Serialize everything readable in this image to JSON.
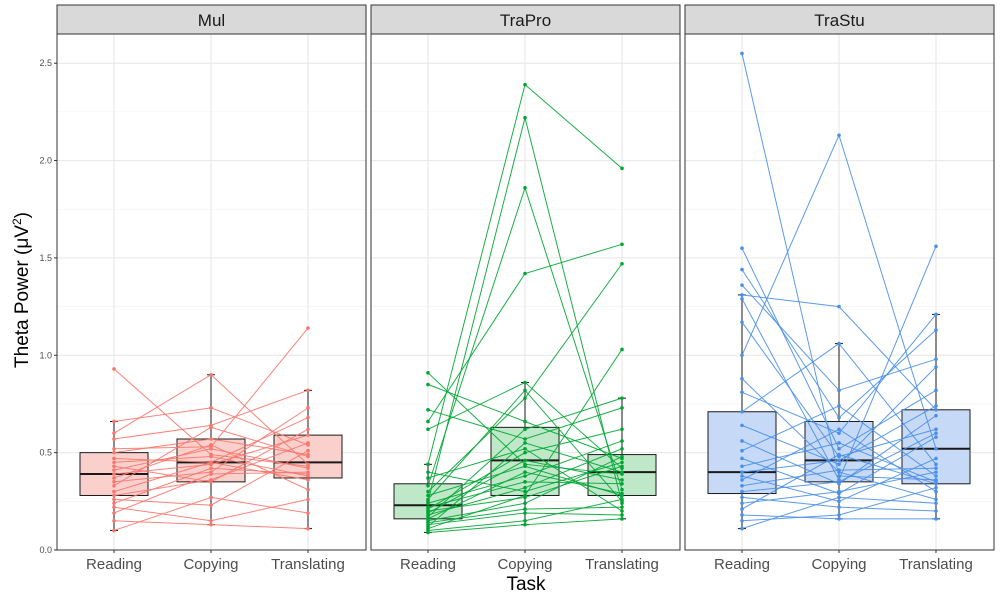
{
  "chart_data": {
    "type": "box",
    "xlabel": "Task",
    "ylabel_main": "Theta Power  (μV",
    "ylabel_sup": "2",
    "ylabel_close": ")",
    "ylim": [
      0,
      2.65
    ],
    "yticks": [
      0.0,
      0.5,
      1.0,
      1.5,
      2.0,
      2.5
    ],
    "ytick_labels": [
      "0.0",
      "0.5",
      "1.0",
      "1.5",
      "2.0",
      "2.5"
    ],
    "categories": [
      "Reading",
      "Copying",
      "Translating"
    ],
    "grid": true,
    "panels": [
      {
        "name": "Mul",
        "color": "#F8766D",
        "fill": "#FAD0CD",
        "boxes": [
          {
            "task": "Reading",
            "lower_whisker": 0.1,
            "q1": 0.28,
            "median": 0.39,
            "q3": 0.5,
            "upper_whisker": 0.66
          },
          {
            "task": "Copying",
            "lower_whisker": 0.13,
            "q1": 0.35,
            "median": 0.45,
            "q3": 0.57,
            "upper_whisker": 0.9
          },
          {
            "task": "Translating",
            "lower_whisker": 0.11,
            "q1": 0.37,
            "median": 0.45,
            "q3": 0.59,
            "upper_whisker": 0.82
          }
        ],
        "subjects": [
          [
            0.93,
            0.49,
            0.43
          ],
          [
            0.66,
            0.73,
            0.54
          ],
          [
            0.6,
            0.9,
            0.44
          ],
          [
            0.57,
            0.64,
            0.82
          ],
          [
            0.52,
            0.53,
            1.14
          ],
          [
            0.5,
            0.57,
            0.49
          ],
          [
            0.47,
            0.45,
            0.68
          ],
          [
            0.45,
            0.48,
            0.38
          ],
          [
            0.43,
            0.35,
            0.62
          ],
          [
            0.41,
            0.52,
            0.42
          ],
          [
            0.39,
            0.44,
            0.59
          ],
          [
            0.37,
            0.54,
            0.31
          ],
          [
            0.35,
            0.4,
            0.73
          ],
          [
            0.33,
            0.63,
            0.48
          ],
          [
            0.3,
            0.45,
            0.36
          ],
          [
            0.28,
            0.36,
            0.55
          ],
          [
            0.26,
            0.23,
            0.51
          ],
          [
            0.24,
            0.42,
            0.39
          ],
          [
            0.22,
            0.15,
            0.26
          ],
          [
            0.19,
            0.39,
            0.4
          ],
          [
            0.15,
            0.13,
            0.11
          ],
          [
            0.1,
            0.27,
            0.19
          ]
        ]
      },
      {
        "name": "TraPro",
        "color": "#00A633",
        "fill": "#BFE8C9",
        "boxes": [
          {
            "task": "Reading",
            "lower_whisker": 0.09,
            "q1": 0.16,
            "median": 0.23,
            "q3": 0.34,
            "upper_whisker": 0.44
          },
          {
            "task": "Copying",
            "lower_whisker": 0.13,
            "q1": 0.28,
            "median": 0.46,
            "q3": 0.63,
            "upper_whisker": 0.86
          },
          {
            "task": "Translating",
            "lower_whisker": 0.16,
            "q1": 0.28,
            "median": 0.4,
            "q3": 0.49,
            "upper_whisker": 0.78
          }
        ],
        "subjects": [
          [
            0.91,
            0.44,
            0.39
          ],
          [
            0.85,
            0.66,
            0.47
          ],
          [
            0.72,
            0.57,
            0.73
          ],
          [
            0.66,
            1.42,
            1.57
          ],
          [
            0.62,
            0.86,
            0.42
          ],
          [
            0.44,
            2.39,
            1.96
          ],
          [
            0.4,
            0.3,
            0.45
          ],
          [
            0.37,
            0.52,
            0.2
          ],
          [
            0.33,
            1.86,
            0.31
          ],
          [
            0.3,
            0.78,
            1.47
          ],
          [
            0.28,
            0.43,
            0.28
          ],
          [
            0.26,
            0.82,
            0.25
          ],
          [
            0.25,
            2.22,
            0.24
          ],
          [
            0.24,
            0.38,
            0.56
          ],
          [
            0.22,
            0.35,
            0.34
          ],
          [
            0.21,
            0.5,
            0.62
          ],
          [
            0.2,
            0.27,
            0.43
          ],
          [
            0.19,
            0.46,
            0.36
          ],
          [
            0.18,
            0.32,
            0.52
          ],
          [
            0.17,
            0.62,
            0.78
          ],
          [
            0.16,
            0.4,
            0.29
          ],
          [
            0.15,
            0.24,
            0.48
          ],
          [
            0.14,
            0.21,
            0.22
          ],
          [
            0.13,
            0.19,
            0.18
          ],
          [
            0.12,
            0.55,
            0.4
          ],
          [
            0.11,
            0.28,
            1.03
          ],
          [
            0.1,
            0.15,
            0.26
          ],
          [
            0.09,
            0.13,
            0.16
          ]
        ]
      },
      {
        "name": "TraStu",
        "color": "#4A8FE8",
        "fill": "#C6D9F6",
        "boxes": [
          {
            "task": "Reading",
            "lower_whisker": 0.11,
            "q1": 0.29,
            "median": 0.4,
            "q3": 0.71,
            "upper_whisker": 1.31
          },
          {
            "task": "Copying",
            "lower_whisker": 0.16,
            "q1": 0.35,
            "median": 0.46,
            "q3": 0.66,
            "upper_whisker": 1.06
          },
          {
            "task": "Translating",
            "lower_whisker": 0.16,
            "q1": 0.34,
            "median": 0.52,
            "q3": 0.72,
            "upper_whisker": 1.21
          }
        ],
        "subjects": [
          [
            2.55,
            0.38,
            0.36
          ],
          [
            1.55,
            0.52,
            0.82
          ],
          [
            1.44,
            0.68,
            1.13
          ],
          [
            1.36,
            0.82,
            0.98
          ],
          [
            1.31,
            1.25,
            0.72
          ],
          [
            1.29,
            0.36,
            1.56
          ],
          [
            1.17,
            0.48,
            0.62
          ],
          [
            1.0,
            2.13,
            0.52
          ],
          [
            0.88,
            0.4,
            0.26
          ],
          [
            0.81,
            0.6,
            1.21
          ],
          [
            0.71,
            1.06,
            0.44
          ],
          [
            0.64,
            0.44,
            0.94
          ],
          [
            0.56,
            0.34,
            0.69
          ],
          [
            0.51,
            0.74,
            0.38
          ],
          [
            0.47,
            0.29,
            0.58
          ],
          [
            0.43,
            0.55,
            0.35
          ],
          [
            0.4,
            0.46,
            0.74
          ],
          [
            0.38,
            0.25,
            0.47
          ],
          [
            0.36,
            0.62,
            0.3
          ],
          [
            0.33,
            0.41,
            0.42
          ],
          [
            0.3,
            0.35,
            0.6
          ],
          [
            0.27,
            0.22,
            0.2
          ],
          [
            0.24,
            0.3,
            0.4
          ],
          [
            0.21,
            0.49,
            0.34
          ],
          [
            0.18,
            0.16,
            0.16
          ],
          [
            0.15,
            0.18,
            0.32
          ],
          [
            0.11,
            0.27,
            0.24
          ]
        ]
      }
    ]
  }
}
